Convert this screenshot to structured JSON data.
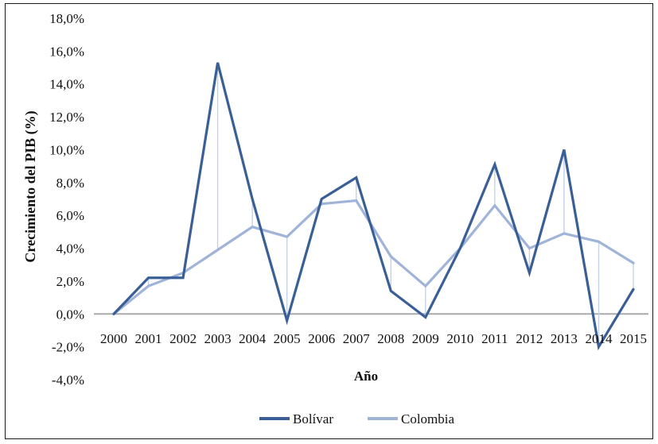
{
  "chart_data": {
    "type": "line",
    "xlabel": "Año",
    "ylabel": "Crecimiento del PIB (%)",
    "categories": [
      "2000",
      "2001",
      "2002",
      "2003",
      "2004",
      "2005",
      "2006",
      "2007",
      "2008",
      "2009",
      "2010",
      "2011",
      "2012",
      "2013",
      "2014",
      "2015"
    ],
    "series": [
      {
        "name": "Bolívar",
        "color": "#3a5f96",
        "values": [
          0.0,
          2.2,
          2.2,
          15.3,
          7.0,
          -0.4,
          7.0,
          8.3,
          1.4,
          -0.2,
          4.0,
          9.1,
          2.5,
          10.0,
          -2.0,
          1.5
        ]
      },
      {
        "name": "Colombia",
        "color": "#9fb4d8",
        "values": [
          0.0,
          1.7,
          2.5,
          3.9,
          5.3,
          4.7,
          6.7,
          6.9,
          3.5,
          1.7,
          4.0,
          6.6,
          4.0,
          4.9,
          4.4,
          3.1
        ]
      }
    ],
    "ylim": [
      -4,
      18
    ],
    "yticks": [
      "-4,0%",
      "-2,0%",
      "0,0%",
      "2,0%",
      "4,0%",
      "6,0%",
      "8,0%",
      "10,0%",
      "12,0%",
      "14,0%",
      "16,0%",
      "18,0%"
    ],
    "legend_position": "bottom"
  }
}
